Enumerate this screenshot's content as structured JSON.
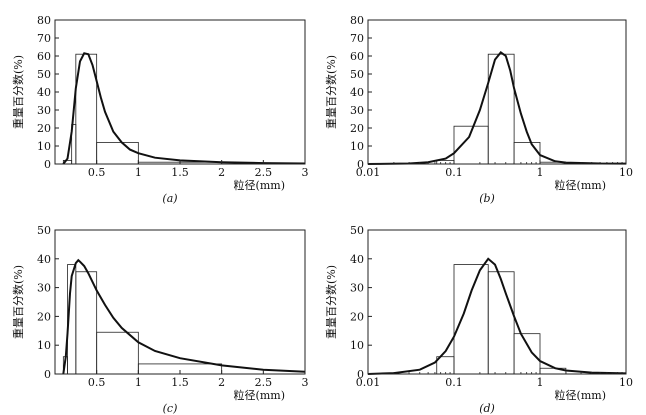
{
  "chart_data": [
    {
      "type": "bar",
      "panel_label": "(a)",
      "xscale": "linear",
      "xlabel": "粒径(mm)",
      "ylabel": "重量百分数(%)",
      "xlim": [
        0,
        3
      ],
      "ylim": [
        0,
        80
      ],
      "xticks": [
        0.5,
        1,
        1.5,
        2,
        2.5,
        3
      ],
      "xtick_labels": [
        "0.5",
        "1",
        "1.5",
        "2",
        "2.5",
        "3"
      ],
      "yticks": [
        0,
        10,
        20,
        30,
        40,
        50,
        60,
        70,
        80
      ],
      "ytick_labels": [
        "0",
        "10",
        "20",
        "30",
        "40",
        "50",
        "60",
        "70",
        "80"
      ],
      "bins": [
        {
          "x0": 0.1,
          "x1": 0.2,
          "value": 2
        },
        {
          "x0": 0.2,
          "x1": 0.25,
          "value": 22
        },
        {
          "x0": 0.25,
          "x1": 0.5,
          "value": 61
        },
        {
          "x0": 0.5,
          "x1": 1.0,
          "value": 12
        },
        {
          "x0": 1.0,
          "x1": 2.0,
          "value": 1
        }
      ],
      "curve": [
        [
          0.1,
          0
        ],
        [
          0.15,
          3
        ],
        [
          0.2,
          18
        ],
        [
          0.25,
          42
        ],
        [
          0.3,
          57
        ],
        [
          0.35,
          61.5
        ],
        [
          0.4,
          61
        ],
        [
          0.45,
          55
        ],
        [
          0.5,
          46
        ],
        [
          0.55,
          37
        ],
        [
          0.6,
          29
        ],
        [
          0.7,
          18
        ],
        [
          0.8,
          12
        ],
        [
          0.9,
          8
        ],
        [
          1.0,
          6
        ],
        [
          1.2,
          3.5
        ],
        [
          1.5,
          2
        ],
        [
          2.0,
          1
        ],
        [
          2.5,
          0.5
        ],
        [
          3.0,
          0.3
        ]
      ]
    },
    {
      "type": "bar",
      "panel_label": "(b)",
      "xscale": "log",
      "xlabel": "粒径(mm)",
      "ylabel": "重量百分数(%)",
      "xlim": [
        0.01,
        10
      ],
      "ylim": [
        0,
        80
      ],
      "xticks": [
        0.01,
        0.1,
        1,
        10
      ],
      "xtick_labels": [
        "0.01",
        "0.1",
        "1",
        "10"
      ],
      "yticks": [
        0,
        10,
        20,
        30,
        40,
        50,
        60,
        70,
        80
      ],
      "ytick_labels": [
        "0",
        "10",
        "20",
        "30",
        "40",
        "50",
        "60",
        "70",
        "80"
      ],
      "bins": [
        {
          "x0": 0.063,
          "x1": 0.1,
          "value": 2
        },
        {
          "x0": 0.1,
          "x1": 0.25,
          "value": 21
        },
        {
          "x0": 0.25,
          "x1": 0.5,
          "value": 61
        },
        {
          "x0": 0.5,
          "x1": 1.0,
          "value": 12
        },
        {
          "x0": 1.0,
          "x1": 2.0,
          "value": 1
        }
      ],
      "curve": [
        [
          0.01,
          0
        ],
        [
          0.03,
          0.3
        ],
        [
          0.05,
          1
        ],
        [
          0.08,
          3
        ],
        [
          0.1,
          6
        ],
        [
          0.15,
          15
        ],
        [
          0.2,
          30
        ],
        [
          0.25,
          45
        ],
        [
          0.3,
          58
        ],
        [
          0.35,
          62
        ],
        [
          0.4,
          60
        ],
        [
          0.45,
          52
        ],
        [
          0.5,
          42
        ],
        [
          0.6,
          28
        ],
        [
          0.7,
          18
        ],
        [
          0.8,
          11
        ],
        [
          1.0,
          5
        ],
        [
          1.5,
          1.5
        ],
        [
          2.0,
          0.8
        ],
        [
          5.0,
          0.3
        ],
        [
          10.0,
          0.2
        ]
      ]
    },
    {
      "type": "bar",
      "panel_label": "(c)",
      "xscale": "linear",
      "xlabel": "粒径(mm)",
      "ylabel": "重量百分数(%)",
      "xlim": [
        0,
        3
      ],
      "ylim": [
        0,
        50
      ],
      "xticks": [
        0.5,
        1,
        1.5,
        2,
        2.5,
        3
      ],
      "xtick_labels": [
        "0.5",
        "1",
        "1.5",
        "2",
        "2.5",
        "3"
      ],
      "yticks": [
        0,
        10,
        20,
        30,
        40,
        50
      ],
      "ytick_labels": [
        "0",
        "10",
        "20",
        "30",
        "40",
        "50"
      ],
      "bins": [
        {
          "x0": 0.1,
          "x1": 0.15,
          "value": 6
        },
        {
          "x0": 0.15,
          "x1": 0.25,
          "value": 38
        },
        {
          "x0": 0.25,
          "x1": 0.5,
          "value": 35.5
        },
        {
          "x0": 0.5,
          "x1": 1.0,
          "value": 14.5
        },
        {
          "x0": 1.0,
          "x1": 2.0,
          "value": 3.5
        }
      ],
      "curve": [
        [
          0.1,
          0
        ],
        [
          0.13,
          6
        ],
        [
          0.15,
          14
        ],
        [
          0.18,
          28
        ],
        [
          0.2,
          34
        ],
        [
          0.25,
          38.5
        ],
        [
          0.28,
          39.5
        ],
        [
          0.3,
          39
        ],
        [
          0.35,
          37.5
        ],
        [
          0.4,
          35
        ],
        [
          0.5,
          29
        ],
        [
          0.6,
          24
        ],
        [
          0.7,
          19.5
        ],
        [
          0.8,
          16
        ],
        [
          1.0,
          11
        ],
        [
          1.2,
          8
        ],
        [
          1.5,
          5.5
        ],
        [
          2.0,
          3
        ],
        [
          2.5,
          1.5
        ],
        [
          3.0,
          0.8
        ]
      ]
    },
    {
      "type": "bar",
      "panel_label": "(d)",
      "xscale": "log",
      "xlabel": "粒径(mm)",
      "ylabel": "重量百分数(%)",
      "xlim": [
        0.01,
        10
      ],
      "ylim": [
        0,
        50
      ],
      "xticks": [
        0.01,
        0.1,
        1,
        10
      ],
      "xtick_labels": [
        "0.01",
        "0.1",
        "1",
        "10"
      ],
      "yticks": [
        0,
        10,
        20,
        30,
        40,
        50
      ],
      "ytick_labels": [
        "0",
        "10",
        "20",
        "30",
        "40",
        "50"
      ],
      "bins": [
        {
          "x0": 0.063,
          "x1": 0.1,
          "value": 6
        },
        {
          "x0": 0.1,
          "x1": 0.25,
          "value": 38
        },
        {
          "x0": 0.25,
          "x1": 0.5,
          "value": 35.5
        },
        {
          "x0": 0.5,
          "x1": 1.0,
          "value": 14
        },
        {
          "x0": 1.0,
          "x1": 2.0,
          "value": 2
        }
      ],
      "curve": [
        [
          0.01,
          0
        ],
        [
          0.02,
          0.3
        ],
        [
          0.04,
          1.5
        ],
        [
          0.06,
          4
        ],
        [
          0.08,
          8
        ],
        [
          0.1,
          13
        ],
        [
          0.13,
          21
        ],
        [
          0.16,
          29
        ],
        [
          0.2,
          36
        ],
        [
          0.25,
          40
        ],
        [
          0.3,
          38
        ],
        [
          0.35,
          33
        ],
        [
          0.4,
          28
        ],
        [
          0.5,
          20
        ],
        [
          0.6,
          14
        ],
        [
          0.8,
          7.5
        ],
        [
          1.0,
          4.5
        ],
        [
          1.5,
          2
        ],
        [
          2.0,
          1.2
        ],
        [
          4.0,
          0.5
        ],
        [
          10.0,
          0.2
        ]
      ]
    }
  ]
}
